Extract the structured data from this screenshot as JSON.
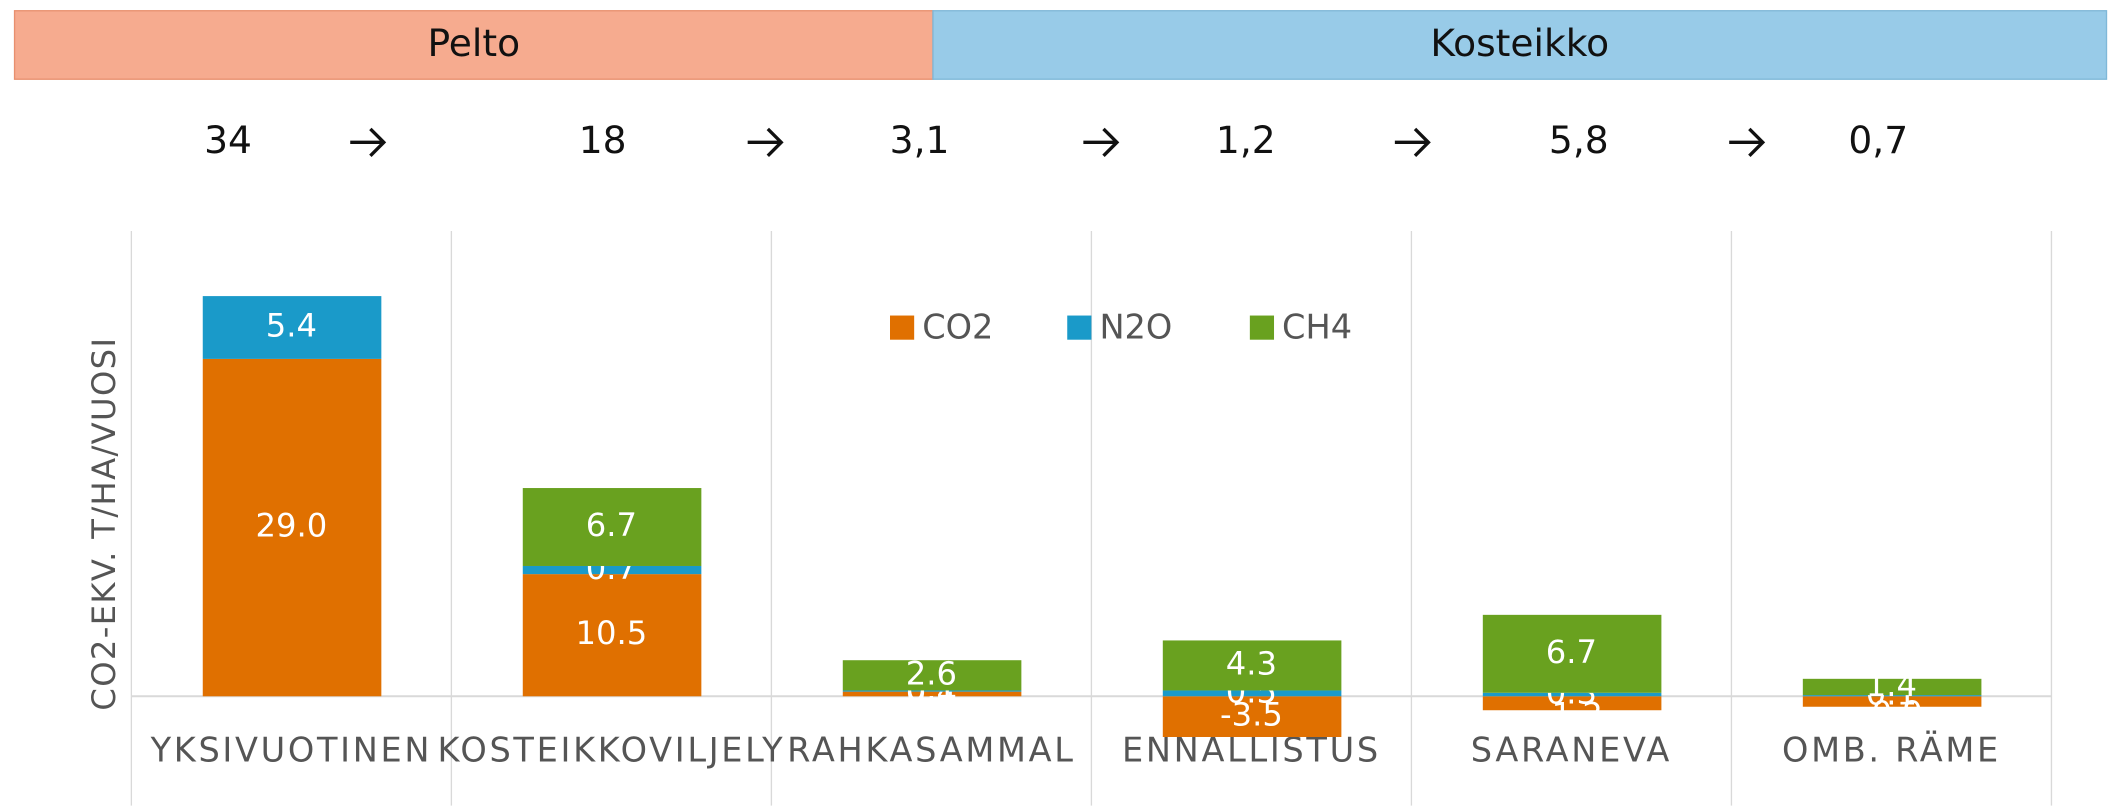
{
  "header": {
    "segments": [
      {
        "label": "Pelto",
        "color": "#f6ab8f"
      },
      {
        "label": "Kosteikko",
        "color": "#98cbe8"
      }
    ],
    "totals": [
      "34",
      "18",
      "3,1",
      "1,2",
      "5,8",
      "0,7"
    ]
  },
  "chart_data": {
    "type": "bar",
    "stacked": true,
    "y_label": "CO2-EKV. T/HA/VUOSI",
    "categories": [
      "YKSIVUOTINEN",
      "KOSTEIKKOVILJELY",
      "RAHKASAMMAL",
      "ENNALLISTUS",
      "SARANEVA",
      "OMB. RÄME"
    ],
    "series": [
      {
        "name": "CO2",
        "color": "#e07000",
        "values": [
          29.0,
          10.5,
          0.4,
          -3.5,
          -1.2,
          -0.9
        ],
        "value_labels": [
          "29.0",
          "10.5",
          "0.4",
          "-3.5",
          "-1.2",
          "-0.9"
        ]
      },
      {
        "name": "N2O",
        "color": "#1a9ac9",
        "values": [
          5.4,
          0.7,
          0.1,
          0.5,
          0.3,
          0.1
        ],
        "value_labels": [
          "5.4",
          "0.7",
          "0.1",
          "0.5",
          "0.3",
          "0.1"
        ]
      },
      {
        "name": "CH4",
        "color": "#69a11f",
        "values": [
          0,
          6.7,
          2.6,
          4.3,
          6.7,
          1.4
        ],
        "value_labels": [
          null,
          "6.7",
          "2.6",
          "4.3",
          "6.7",
          "1.4"
        ]
      }
    ],
    "ylim": [
      -9.4,
      40
    ],
    "legend": "top"
  }
}
